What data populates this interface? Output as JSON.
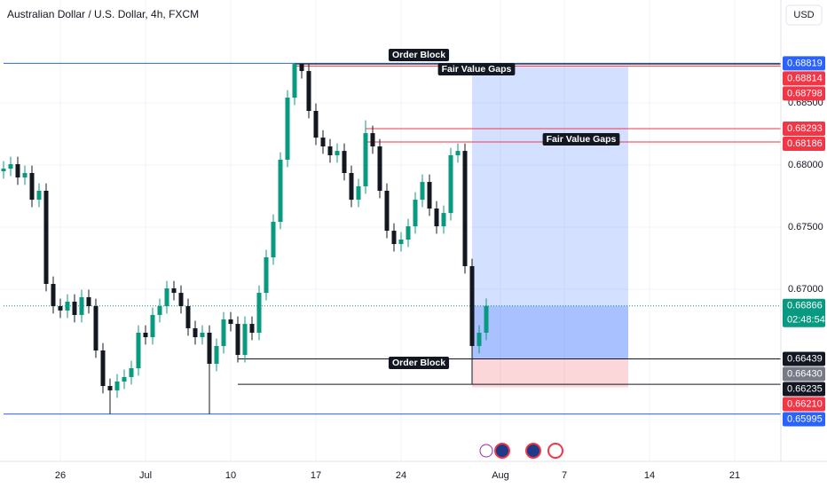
{
  "title": "Australian Dollar / U.S. Dollar, 4h, FXCM",
  "currency": "USD",
  "chart_data": {
    "type": "candlestick",
    "open": [
      0.6795,
      0.67971,
      0.68007,
      0.679,
      0.67936,
      0.67721,
      0.67793,
      0.67043,
      0.66864,
      0.66829,
      0.669,
      0.66793,
      0.66936,
      0.66864,
      0.66507,
      0.66221,
      0.66186,
      0.66257,
      0.66293,
      0.66364,
      0.6665,
      0.66614,
      0.66793,
      0.66864,
      0.67007,
      0.66971,
      0.66864,
      0.66686,
      0.66614,
      0.6665,
      0.664,
      0.66543,
      0.66757,
      0.66721,
      0.66471,
      0.66721,
      0.6665,
      0.66971,
      0.67257,
      0.67543,
      0.68043,
      0.68543,
      0.68814,
      0.68757,
      0.68436,
      0.68221,
      0.6815,
      0.68079,
      0.68114,
      0.67936,
      0.67721,
      0.67829,
      0.68257,
      0.6815,
      0.67793,
      0.67471,
      0.67364,
      0.674,
      0.67507,
      0.67721,
      0.67864,
      0.6765,
      0.67507,
      0.67614,
      0.68079,
      0.68114,
      0.67186,
      0.66543,
      0.6665
    ],
    "high": [
      0.68031,
      0.68067,
      0.68067,
      0.67996,
      0.67996,
      0.67853,
      0.67853,
      0.67103,
      0.66924,
      0.6696,
      0.6696,
      0.66996,
      0.66996,
      0.66924,
      0.66567,
      0.66281,
      0.66317,
      0.66353,
      0.66424,
      0.6671,
      0.6671,
      0.66853,
      0.66924,
      0.67067,
      0.67067,
      0.67031,
      0.66924,
      0.66746,
      0.6671,
      0.6671,
      0.66603,
      0.66817,
      0.66817,
      0.66781,
      0.66781,
      0.66781,
      0.67031,
      0.67317,
      0.67603,
      0.68103,
      0.68603,
      0.68819,
      0.68817,
      0.68817,
      0.68496,
      0.68281,
      0.6821,
      0.68174,
      0.68174,
      0.67996,
      0.67889,
      0.6836,
      0.68317,
      0.6821,
      0.67853,
      0.67531,
      0.6746,
      0.67567,
      0.67781,
      0.67924,
      0.67924,
      0.6771,
      0.67674,
      0.68139,
      0.68174,
      0.68174,
      0.67246,
      0.6671,
      0.66926
    ],
    "low": [
      0.6789,
      0.67911,
      0.6784,
      0.6784,
      0.67661,
      0.67661,
      0.66983,
      0.66804,
      0.66769,
      0.66769,
      0.66733,
      0.66733,
      0.66804,
      0.66447,
      0.66161,
      0.65995,
      0.66126,
      0.66197,
      0.66233,
      0.66304,
      0.66554,
      0.66554,
      0.66733,
      0.66804,
      0.66911,
      0.66804,
      0.66626,
      0.66554,
      0.66554,
      0.65995,
      0.6634,
      0.66483,
      0.66661,
      0.66411,
      0.66411,
      0.6659,
      0.6659,
      0.66911,
      0.67197,
      0.67483,
      0.67983,
      0.68483,
      0.68697,
      0.68376,
      0.68161,
      0.6809,
      0.68019,
      0.68019,
      0.67876,
      0.67661,
      0.67661,
      0.67769,
      0.6809,
      0.67733,
      0.67411,
      0.67304,
      0.67304,
      0.6734,
      0.67447,
      0.67661,
      0.6759,
      0.67447,
      0.67447,
      0.67554,
      0.68019,
      0.67126,
      0.66235,
      0.66483,
      0.6659
    ],
    "close": [
      0.67971,
      0.68007,
      0.679,
      0.67936,
      0.67721,
      0.67793,
      0.67043,
      0.66864,
      0.66829,
      0.669,
      0.66793,
      0.66936,
      0.66864,
      0.66507,
      0.66221,
      0.66186,
      0.66257,
      0.66293,
      0.66364,
      0.6665,
      0.66614,
      0.66793,
      0.66864,
      0.67007,
      0.66971,
      0.66864,
      0.66686,
      0.66614,
      0.6665,
      0.664,
      0.66543,
      0.66757,
      0.66721,
      0.66471,
      0.66721,
      0.6665,
      0.66971,
      0.67257,
      0.67543,
      0.68043,
      0.68543,
      0.68814,
      0.68757,
      0.68436,
      0.68221,
      0.6815,
      0.68079,
      0.68114,
      0.67936,
      0.67721,
      0.67829,
      0.68257,
      0.6815,
      0.67793,
      0.67471,
      0.67364,
      0.674,
      0.67507,
      0.67721,
      0.67864,
      0.6765,
      0.67507,
      0.67614,
      0.68079,
      0.68114,
      0.67186,
      0.66543,
      0.6665,
      0.66866
    ],
    "up_color": "#089981",
    "down_color": "#131722",
    "xlim": [
      -0.5,
      109.5
    ],
    "xticks": [
      {
        "value": 8,
        "label": "26"
      },
      {
        "value": 20,
        "label": "Jul"
      },
      {
        "value": 32,
        "label": "10"
      },
      {
        "value": 44,
        "label": "17"
      },
      {
        "value": 56,
        "label": "24"
      },
      {
        "value": 70,
        "label": "Aug"
      },
      {
        "value": 79,
        "label": "7"
      },
      {
        "value": 91,
        "label": "14"
      },
      {
        "value": 103,
        "label": "21"
      }
    ],
    "ylim": [
      0.65614,
      0.69329
    ],
    "yticks": [
      {
        "value": 0.685,
        "label": "0.68500"
      },
      {
        "value": 0.68,
        "label": "0.68000"
      },
      {
        "value": 0.675,
        "label": "0.67500"
      },
      {
        "value": 0.67,
        "label": "0.67000"
      }
    ],
    "grid": true,
    "levels": [
      {
        "value": 0.68819,
        "label": "0.68819",
        "color": "#2962ff",
        "line_color": "#2962ff",
        "from": 0
      },
      {
        "value": 0.68814,
        "label": "0.68814",
        "color": "#f23645",
        "line_color": "#131722",
        "from": 41
      },
      {
        "value": 0.68798,
        "label": "0.68798",
        "color": "#f23645",
        "line_color": "#f23645",
        "from": 41
      },
      {
        "value": 0.68293,
        "label": "0.68293",
        "color": "#f23645",
        "line_color": "#f23645",
        "from": 51
      },
      {
        "value": 0.68186,
        "label": "0.68186",
        "color": "#f23645",
        "line_color": "#f23645",
        "from": 51
      },
      {
        "value": 0.66866,
        "label": "0.66866",
        "color": "#089981",
        "line_color": "#089981",
        "from": 0,
        "style": "dotted"
      },
      {
        "value": 0.66439,
        "label": "0.66439",
        "color": "#131722",
        "line_color": "#131722",
        "from": 33
      },
      {
        "value": 0.6643,
        "label": "0.66430",
        "color": "#787b86"
      },
      {
        "value": 0.66235,
        "label": "0.66235",
        "color": "#131722",
        "line_color": "#131722",
        "from": 33
      },
      {
        "value": 0.6621,
        "label": "0.66210",
        "color": "#f23645"
      },
      {
        "value": 0.65995,
        "label": "0.65995",
        "color": "#2962ff",
        "line_color": "#2962ff",
        "from": 0
      }
    ],
    "annotations": [
      "Order Block",
      "Fair Value Gaps",
      "Fair Value Gaps",
      "Order Block"
    ],
    "countdown": "02:48:54",
    "position": {
      "from": 66,
      "to": 88,
      "target": 0.68798,
      "entry": 0.66439,
      "stop": 0.6621
    }
  }
}
